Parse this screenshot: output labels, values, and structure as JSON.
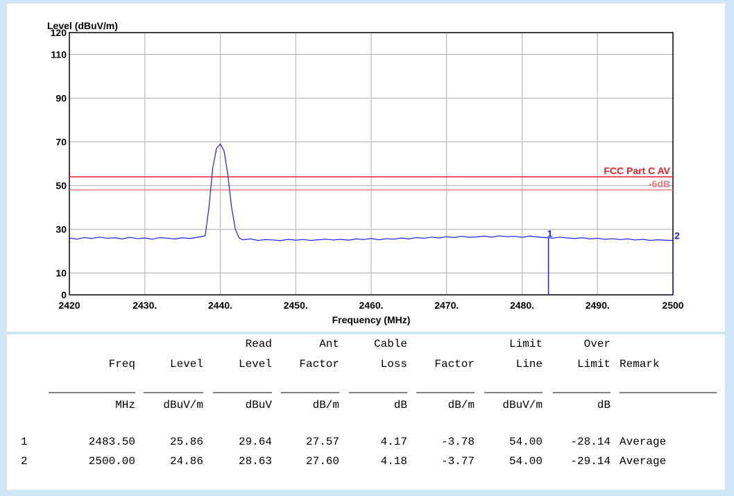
{
  "chart_data": {
    "type": "line",
    "y_label": "Level (dBuV/m)",
    "x_label": "Frequency (MHz)",
    "xlim": [
      2420,
      2500
    ],
    "ylim": [
      0,
      120
    ],
    "xticks": [
      2420,
      {
        "value": 2430,
        "label": "2430."
      },
      {
        "value": 2440,
        "label": "2440."
      },
      {
        "value": 2450,
        "label": "2450."
      },
      {
        "value": 2460,
        "label": "2460."
      },
      {
        "value": 2470,
        "label": "2470."
      },
      {
        "value": 2480,
        "label": "2480."
      },
      {
        "value": 2490,
        "label": "2490."
      },
      2500
    ],
    "yticks": [
      0,
      10,
      30,
      50,
      70,
      90,
      110,
      120
    ],
    "grid": true,
    "series": [
      {
        "color": "#1a1aff",
        "x": [
          2420,
          2421,
          2422,
          2423,
          2424,
          2425,
          2426,
          2427,
          2428,
          2429,
          2430,
          2431,
          2432,
          2433,
          2434,
          2435,
          2436,
          2437,
          2438,
          2438.5,
          2439,
          2439.5,
          2440,
          2440.5,
          2441,
          2441.5,
          2442,
          2442.5,
          2443,
          2444,
          2445,
          2446,
          2447,
          2448,
          2449,
          2450,
          2451,
          2452,
          2453,
          2454,
          2455,
          2456,
          2457,
          2458,
          2459,
          2460,
          2461,
          2462,
          2463,
          2464,
          2465,
          2466,
          2467,
          2468,
          2469,
          2470,
          2471,
          2472,
          2473,
          2474,
          2475,
          2476,
          2477,
          2478,
          2479,
          2480,
          2481,
          2482,
          2483,
          2484,
          2485,
          2486,
          2487,
          2488,
          2489,
          2490,
          2491,
          2492,
          2493,
          2494,
          2495,
          2496,
          2497,
          2498,
          2499,
          2500
        ],
        "values": [
          26,
          25.5,
          26.2,
          25.8,
          26.4,
          25.9,
          26.1,
          25.6,
          26.3,
          25.7,
          26.0,
          25.5,
          26.2,
          25.9,
          25.6,
          26.1,
          25.8,
          26.3,
          27,
          40,
          58,
          67,
          69,
          66,
          55,
          40,
          30,
          26,
          25.2,
          25.6,
          24.9,
          25.3,
          25.1,
          24.8,
          25.4,
          25.0,
          25.3,
          24.9,
          25.2,
          25.5,
          25.1,
          25.4,
          25.0,
          25.6,
          25.3,
          25.8,
          25.2,
          25.7,
          25.5,
          26.0,
          25.6,
          26.2,
          25.9,
          26.4,
          26.0,
          26.6,
          26.2,
          26.8,
          26.3,
          26.5,
          26.9,
          26.4,
          27.0,
          26.6,
          26.8,
          26.3,
          26.9,
          26.5,
          26.2,
          25.9,
          26.4,
          26.0,
          25.8,
          26.1,
          25.6,
          25.9,
          25.4,
          25.7,
          25.3,
          25.6,
          25.1,
          25.4,
          24.9,
          25.2,
          25.0,
          24.86
        ]
      }
    ],
    "limit_lines": [
      {
        "label": "FCC Part C AV",
        "value": 54,
        "color": "#e8202a"
      },
      {
        "label": "-6dB",
        "value": 48,
        "color": "#e88080"
      }
    ],
    "markers": [
      {
        "label": "1",
        "x": 2483.5,
        "value": 25.86,
        "color": "#1a1aff"
      },
      {
        "label": "2",
        "x": 2500,
        "value": 24.86,
        "color": "#1a1aff"
      }
    ]
  },
  "table": {
    "header_rows": [
      [
        null,
        null,
        null,
        "Read",
        "Ant",
        "Cable",
        null,
        "Limit",
        "Over",
        null
      ],
      [
        null,
        "Freq",
        "Level",
        "Level",
        "Factor",
        "Loss",
        "Factor",
        "Line",
        "Limit",
        "Remark"
      ]
    ],
    "units": [
      null,
      "MHz",
      "dBuV/m",
      "dBuV",
      "dB/m",
      "dB",
      "dB/m",
      "dBuV/m",
      "dB",
      null
    ],
    "rows": [
      [
        "1",
        "2483.50",
        "25.86",
        "29.64",
        "27.57",
        "4.17",
        "-3.78",
        "54.00",
        "-28.14",
        "Average"
      ],
      [
        "2",
        "2500.00",
        "24.86",
        "28.63",
        "27.60",
        "4.18",
        "-3.77",
        "54.00",
        "-29.14",
        "Average"
      ]
    ]
  }
}
